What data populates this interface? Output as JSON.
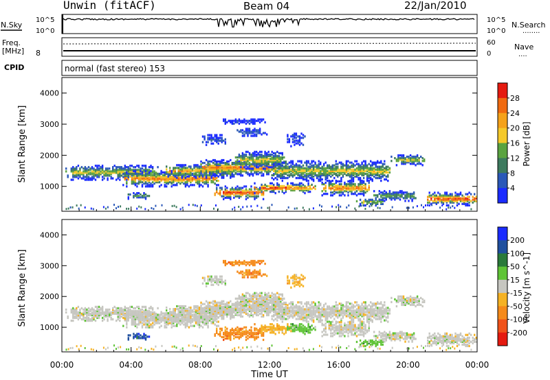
{
  "header": {
    "station": "Unwin (fitACF)",
    "beam": "Beam 04",
    "date": "22/Jan/2010"
  },
  "nsky_panel": {
    "left_label": "N.Sky",
    "left_ticks": [
      "10^5",
      "10^0"
    ],
    "right_ticks": [
      "10^5",
      "10^0"
    ],
    "right_label": "N.Search",
    "right_marker": "........"
  },
  "freq_panel": {
    "left_label_1": "Freq.",
    "left_label_2": "[MHz]",
    "left_tick": "8",
    "right_ticks": [
      "60",
      "0"
    ],
    "right_label": "Nave",
    "right_marker": "....",
    "cpid_label": "CPID",
    "mode_text": "normal (fast stereo) 153"
  },
  "colors": {
    "power_scale": [
      "#1a2bff",
      "#2a58b8",
      "#3d7a5e",
      "#5aa340",
      "#f5c92a",
      "#f5a21a",
      "#f06a10",
      "#e51a10"
    ],
    "velocity_scale": [
      "#1a2bff",
      "#1f4f9e",
      "#2a7a3a",
      "#5fc436",
      "#c6c6c0",
      "#f5b224",
      "#f58a1a",
      "#f0521a",
      "#e51a10"
    ]
  },
  "chart_data": [
    {
      "type": "line",
      "name": "nsky-nsearch",
      "x_range_hours": [
        0,
        24
      ],
      "y_ticks": [
        "10^5",
        "10^0"
      ]
    },
    {
      "type": "line",
      "name": "freq-nave",
      "y_left_tick": "8",
      "y_right_ticks": [
        "60",
        "0"
      ]
    },
    {
      "type": "heatmap",
      "name": "power",
      "ylabel": "Slant Range [km]",
      "ylim": [
        200,
        4500
      ],
      "y_ticks": [
        "1000",
        "2000",
        "3000",
        "4000"
      ],
      "colorbar_label": "Power [dB]",
      "colorbar_ticks": [
        "4",
        "8",
        "12",
        "16",
        "20",
        "24",
        "28"
      ],
      "colorbar_range": [
        0,
        32
      ]
    },
    {
      "type": "heatmap",
      "name": "velocity",
      "ylabel": "Slant Range [km]",
      "xlabel": "Time UT",
      "ylim": [
        200,
        4500
      ],
      "y_ticks": [
        "1000",
        "2000",
        "3000",
        "4000"
      ],
      "x_ticks": [
        "00:00",
        "04:00",
        "08:00",
        "12:00",
        "16:00",
        "20:00",
        "00:00"
      ],
      "colorbar_label": "Velocity [m s^-1]",
      "colorbar_ticks": [
        "200",
        "100",
        "50",
        "15",
        "-15",
        "-50",
        "-100",
        "-200"
      ]
    }
  ]
}
